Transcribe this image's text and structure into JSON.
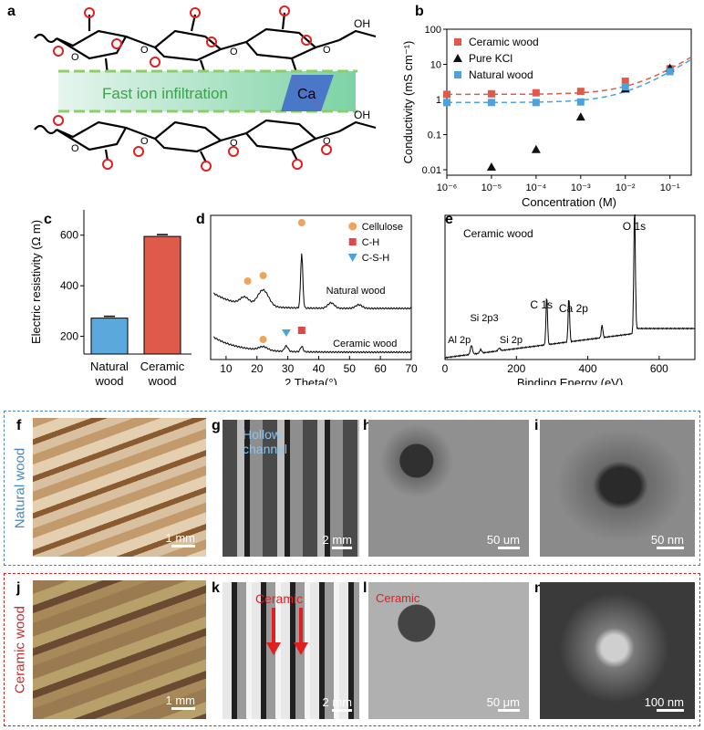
{
  "panels": {
    "a": {
      "label": "a",
      "band_text": "Fast ion infiltration",
      "ion": "Ca",
      "oh_top": "OH",
      "oh_bottom": "OH",
      "ring_charge": "O⁻"
    },
    "b": {
      "label": "b"
    },
    "c": {
      "label": "c"
    },
    "d": {
      "label": "d"
    },
    "e": {
      "label": "e"
    },
    "f": {
      "label": "f",
      "scale": "1 mm"
    },
    "g": {
      "label": "g",
      "scale": "2 mm",
      "annotation": "Hollow\nchannel",
      "ann1": "Hollow",
      "ann2": "channel"
    },
    "h": {
      "label": "h",
      "scale": "50 um"
    },
    "i": {
      "label": "i",
      "scale": "50 nm"
    },
    "j": {
      "label": "j",
      "scale": "1 mm"
    },
    "k": {
      "label": "k",
      "scale": "2 mm",
      "annotation": "Ceramic"
    },
    "l": {
      "label": "l",
      "scale": "50 μm",
      "annotation": "Ceramic"
    },
    "m": {
      "label": "m",
      "scale": "100 nm"
    },
    "row_natural": "Natural wood",
    "row_ceramic": "Ceramic wood"
  },
  "chart_data": [
    {
      "id": "b",
      "type": "scatter",
      "xlabel": "Concentration (M)",
      "ylabel": "Conductivity (mS cm⁻¹)",
      "x_scale": "log",
      "y_scale": "log",
      "xlim": [
        1e-06,
        0.3
      ],
      "ylim": [
        0.007,
        100
      ],
      "x_ticks": [
        "10⁻⁶",
        "10⁻⁵",
        "10⁻⁴",
        "10⁻³",
        "10⁻²",
        "10⁻¹"
      ],
      "y_ticks": [
        "0.01",
        "0.1",
        "1",
        "10",
        "100"
      ],
      "legend_position": "top-left",
      "series": [
        {
          "name": "Ceramic wood",
          "color": "#e05a4a",
          "marker": "square",
          "x": [
            1e-06,
            1e-05,
            0.0001,
            0.001,
            0.01,
            0.1
          ],
          "y": [
            1.4,
            1.45,
            1.55,
            1.7,
            3.3,
            7.5
          ]
        },
        {
          "name": "Pure KCl",
          "color": "#111111",
          "marker": "triangle",
          "x": [
            1e-05,
            0.0001,
            0.001,
            0.01,
            0.1
          ],
          "y": [
            0.012,
            0.038,
            0.32,
            2.0,
            7.8
          ]
        },
        {
          "name": "Natural wood",
          "color": "#4aa3df",
          "marker": "square",
          "x": [
            1e-06,
            1e-05,
            0.0001,
            0.001,
            0.01,
            0.1
          ],
          "y": [
            0.82,
            0.82,
            0.82,
            0.85,
            2.3,
            6.2
          ]
        }
      ]
    },
    {
      "id": "c",
      "type": "bar",
      "ylabel": "Electric resistivity (Ω m)",
      "categories": [
        "Natural\nwood",
        "Ceramic\nwood"
      ],
      "category_lines": [
        [
          "Natural",
          "wood"
        ],
        [
          "Ceramic",
          "wood"
        ]
      ],
      "values": [
        272,
        595
      ],
      "colors": [
        "#5ba8dc",
        "#de5a4a"
      ],
      "ylim": [
        130,
        700
      ],
      "y_ticks": [
        "200",
        "400",
        "600"
      ],
      "y_tick_values": [
        200,
        400,
        600
      ]
    },
    {
      "id": "d",
      "type": "line",
      "xlabel": "2 Theta(°)",
      "xlim": [
        5,
        70
      ],
      "x_ticks": [
        "10",
        "20",
        "30",
        "40",
        "50",
        "60",
        "70"
      ],
      "x_tick_values": [
        10,
        20,
        30,
        40,
        50,
        60,
        70
      ],
      "series": [
        {
          "name": "Natural wood",
          "color": "#000000"
        },
        {
          "name": "Ceramic wood",
          "color": "#000000"
        }
      ],
      "legend": [
        {
          "name": "Cellulose",
          "color": "#f0a35a",
          "marker": "circle"
        },
        {
          "name": "C-H",
          "color": "#e04848",
          "marker": "square"
        },
        {
          "name": "C-S-H",
          "color": "#4aa3df",
          "marker": "triangle-down"
        }
      ]
    },
    {
      "id": "e",
      "type": "line",
      "title": "Ceramic wood",
      "xlabel": "Binding Energy (eV)",
      "xlim": [
        0,
        700
      ],
      "x_ticks": [
        "0",
        "200",
        "400",
        "600"
      ],
      "x_tick_values": [
        0,
        200,
        400,
        600
      ],
      "annotations": [
        "O 1s",
        "Ca 2p",
        "C 1s",
        "Si 2p3",
        "Si 2p",
        "Al 2p"
      ]
    }
  ]
}
